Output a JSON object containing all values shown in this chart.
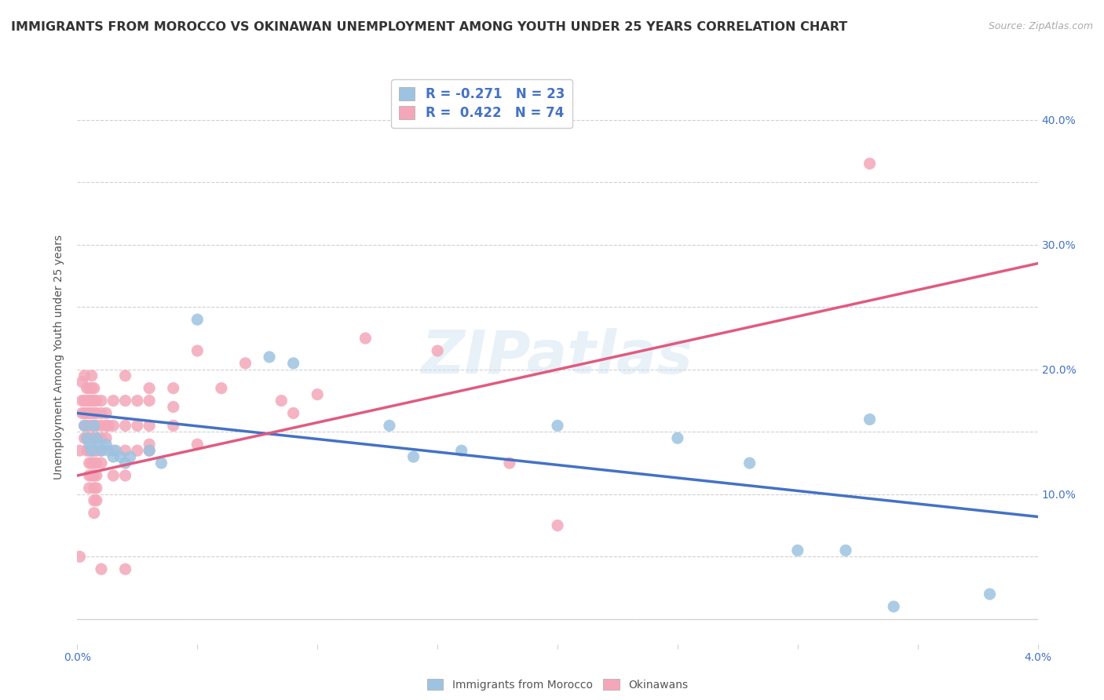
{
  "title": "IMMIGRANTS FROM MOROCCO VS OKINAWAN UNEMPLOYMENT AMONG YOUTH UNDER 25 YEARS CORRELATION CHART",
  "source": "Source: ZipAtlas.com",
  "ylabel": "Unemployment Among Youth under 25 years",
  "xlim": [
    0.0,
    0.04
  ],
  "ylim": [
    -0.02,
    0.44
  ],
  "plot_ylim": [
    0.0,
    0.4
  ],
  "xtick_positions": [
    0.0,
    0.005,
    0.01,
    0.015,
    0.02,
    0.025,
    0.03,
    0.035,
    0.04
  ],
  "xtick_labels": [
    "0.0%",
    "",
    "",
    "",
    "",
    "",
    "",
    "",
    "4.0%"
  ],
  "ytick_positions": [
    0.0,
    0.05,
    0.1,
    0.15,
    0.2,
    0.25,
    0.3,
    0.35,
    0.4
  ],
  "ytick_labels_right": [
    "",
    "",
    "10.0%",
    "",
    "20.0%",
    "",
    "30.0%",
    "",
    "40.0%"
  ],
  "blue_scatter": [
    [
      0.0003,
      0.155
    ],
    [
      0.0004,
      0.145
    ],
    [
      0.0005,
      0.14
    ],
    [
      0.0006,
      0.135
    ],
    [
      0.0007,
      0.155
    ],
    [
      0.0008,
      0.145
    ],
    [
      0.0009,
      0.14
    ],
    [
      0.001,
      0.135
    ],
    [
      0.0012,
      0.14
    ],
    [
      0.0013,
      0.135
    ],
    [
      0.0015,
      0.13
    ],
    [
      0.0016,
      0.135
    ],
    [
      0.0018,
      0.13
    ],
    [
      0.002,
      0.125
    ],
    [
      0.0022,
      0.13
    ],
    [
      0.003,
      0.135
    ],
    [
      0.0035,
      0.125
    ],
    [
      0.005,
      0.24
    ],
    [
      0.008,
      0.21
    ],
    [
      0.009,
      0.205
    ],
    [
      0.013,
      0.155
    ],
    [
      0.014,
      0.13
    ],
    [
      0.016,
      0.135
    ],
    [
      0.02,
      0.155
    ],
    [
      0.025,
      0.145
    ],
    [
      0.028,
      0.125
    ],
    [
      0.03,
      0.055
    ],
    [
      0.032,
      0.055
    ],
    [
      0.033,
      0.16
    ],
    [
      0.038,
      0.02
    ],
    [
      0.034,
      0.01
    ]
  ],
  "pink_scatter": [
    [
      0.0001,
      0.135
    ],
    [
      0.0001,
      0.05
    ],
    [
      0.0002,
      0.19
    ],
    [
      0.0002,
      0.175
    ],
    [
      0.0002,
      0.165
    ],
    [
      0.0003,
      0.195
    ],
    [
      0.0003,
      0.175
    ],
    [
      0.0003,
      0.165
    ],
    [
      0.0003,
      0.155
    ],
    [
      0.0003,
      0.145
    ],
    [
      0.0004,
      0.185
    ],
    [
      0.0004,
      0.175
    ],
    [
      0.0004,
      0.165
    ],
    [
      0.0004,
      0.155
    ],
    [
      0.0004,
      0.145
    ],
    [
      0.0004,
      0.135
    ],
    [
      0.0005,
      0.185
    ],
    [
      0.0005,
      0.175
    ],
    [
      0.0005,
      0.165
    ],
    [
      0.0005,
      0.155
    ],
    [
      0.0005,
      0.145
    ],
    [
      0.0005,
      0.135
    ],
    [
      0.0005,
      0.125
    ],
    [
      0.0005,
      0.115
    ],
    [
      0.0005,
      0.105
    ],
    [
      0.0006,
      0.195
    ],
    [
      0.0006,
      0.185
    ],
    [
      0.0006,
      0.175
    ],
    [
      0.0006,
      0.165
    ],
    [
      0.0006,
      0.155
    ],
    [
      0.0006,
      0.145
    ],
    [
      0.0006,
      0.135
    ],
    [
      0.0006,
      0.125
    ],
    [
      0.0006,
      0.115
    ],
    [
      0.0007,
      0.185
    ],
    [
      0.0007,
      0.175
    ],
    [
      0.0007,
      0.165
    ],
    [
      0.0007,
      0.155
    ],
    [
      0.0007,
      0.145
    ],
    [
      0.0007,
      0.135
    ],
    [
      0.0007,
      0.125
    ],
    [
      0.0007,
      0.115
    ],
    [
      0.0007,
      0.105
    ],
    [
      0.0007,
      0.095
    ],
    [
      0.0007,
      0.085
    ],
    [
      0.0008,
      0.175
    ],
    [
      0.0008,
      0.165
    ],
    [
      0.0008,
      0.155
    ],
    [
      0.0008,
      0.145
    ],
    [
      0.0008,
      0.135
    ],
    [
      0.0008,
      0.125
    ],
    [
      0.0008,
      0.115
    ],
    [
      0.0008,
      0.105
    ],
    [
      0.0008,
      0.095
    ],
    [
      0.001,
      0.175
    ],
    [
      0.001,
      0.165
    ],
    [
      0.001,
      0.155
    ],
    [
      0.001,
      0.145
    ],
    [
      0.001,
      0.135
    ],
    [
      0.001,
      0.125
    ],
    [
      0.0012,
      0.165
    ],
    [
      0.0012,
      0.155
    ],
    [
      0.0012,
      0.145
    ],
    [
      0.0013,
      0.155
    ],
    [
      0.0015,
      0.175
    ],
    [
      0.0015,
      0.155
    ],
    [
      0.0015,
      0.135
    ],
    [
      0.0015,
      0.115
    ],
    [
      0.002,
      0.195
    ],
    [
      0.002,
      0.175
    ],
    [
      0.002,
      0.155
    ],
    [
      0.002,
      0.135
    ],
    [
      0.002,
      0.115
    ],
    [
      0.0025,
      0.175
    ],
    [
      0.0025,
      0.155
    ],
    [
      0.0025,
      0.135
    ],
    [
      0.003,
      0.185
    ],
    [
      0.003,
      0.175
    ],
    [
      0.003,
      0.155
    ],
    [
      0.003,
      0.14
    ],
    [
      0.003,
      0.135
    ],
    [
      0.004,
      0.185
    ],
    [
      0.004,
      0.17
    ],
    [
      0.004,
      0.155
    ],
    [
      0.005,
      0.215
    ],
    [
      0.005,
      0.14
    ],
    [
      0.006,
      0.185
    ],
    [
      0.007,
      0.205
    ],
    [
      0.0085,
      0.175
    ],
    [
      0.009,
      0.165
    ],
    [
      0.01,
      0.18
    ],
    [
      0.012,
      0.225
    ],
    [
      0.015,
      0.215
    ],
    [
      0.018,
      0.125
    ],
    [
      0.02,
      0.075
    ],
    [
      0.001,
      0.04
    ],
    [
      0.002,
      0.04
    ],
    [
      0.033,
      0.365
    ]
  ],
  "blue_line_x": [
    0.0,
    0.04
  ],
  "blue_line_y": [
    0.165,
    0.082
  ],
  "pink_line_x": [
    0.0,
    0.04
  ],
  "pink_line_y": [
    0.115,
    0.285
  ],
  "blue_color": "#9dc3e0",
  "pink_color": "#f4a7b9",
  "blue_line_color": "#4472c4",
  "pink_line_color": "#e05b80",
  "watermark": "ZIPatlas",
  "bg_color": "#ffffff",
  "grid_color": "#d0d0d0",
  "title_fontsize": 11.5,
  "label_fontsize": 10,
  "tick_fontsize": 10
}
